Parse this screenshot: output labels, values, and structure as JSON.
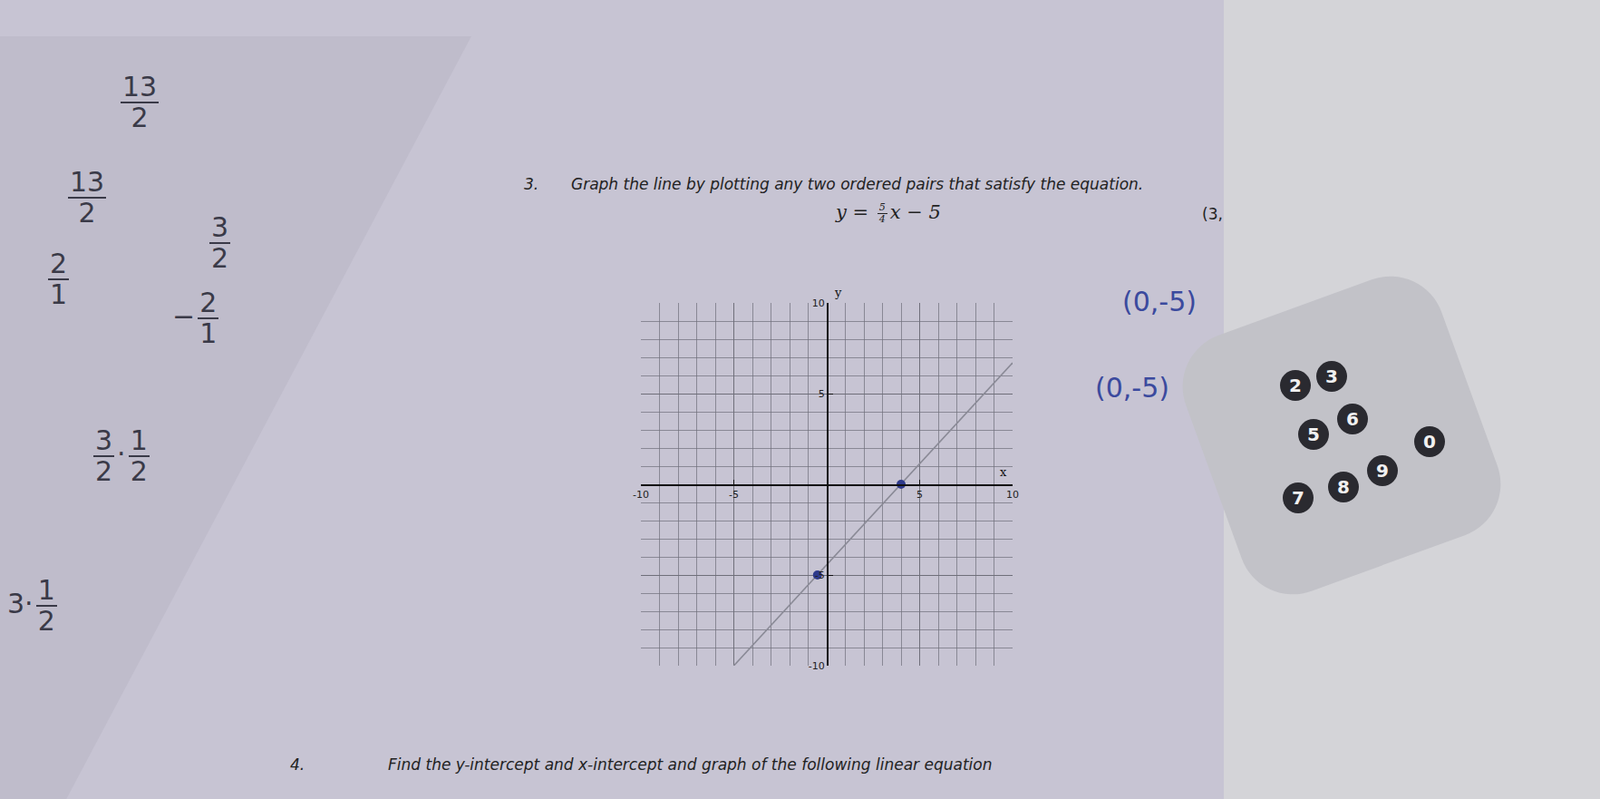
{
  "problem3": {
    "number": "3.",
    "text": "Graph the line by plotting any two ordered pairs that satisfy the equation.",
    "equation": {
      "lhs": "y =",
      "numerator": "5",
      "denominator": "4",
      "rest": "x − 5"
    },
    "margin_note": "(3,"
  },
  "handwritten_answers": [
    "(0,-5)",
    "(0,-5)"
  ],
  "side_notes": [
    [
      {
        "frac": [
          "13",
          "2"
        ]
      }
    ],
    [
      {
        "frac": [
          "13",
          "2"
        ]
      }
    ],
    [
      {
        "frac": [
          "2",
          "1"
        ]
      }
    ],
    [
      {
        "frac": [
          "3",
          "2"
        ]
      }
    ],
    [
      "−",
      {
        "frac": [
          "2",
          "1"
        ]
      }
    ],
    [
      {
        "frac": [
          "3",
          "2"
        ]
      },
      "·",
      {
        "frac": [
          "1",
          "2"
        ]
      }
    ],
    [
      "3",
      "·",
      {
        "frac": [
          "1",
          "2"
        ]
      }
    ]
  ],
  "keypad": [
    "2",
    "3",
    "5",
    "6",
    "0",
    "7",
    "8",
    "9"
  ],
  "problem4": {
    "number": "4.",
    "text": "Find the y-intercept and x-intercept and graph of the following linear equation"
  },
  "chart_data": {
    "type": "line",
    "xlabel": "x",
    "ylabel": "y",
    "xlim": [
      -10,
      10
    ],
    "ylim": [
      -10,
      10
    ],
    "xticks": [
      -10,
      -5,
      5,
      10
    ],
    "yticks": [
      -10,
      -5,
      5,
      10
    ],
    "grid": true,
    "series": [
      {
        "type": "line",
        "color": "#8a8a96",
        "line_style": "solid",
        "x": [
          -5,
          10
        ],
        "y": [
          -10,
          6.7
        ]
      },
      {
        "type": "scatter",
        "color": "#2e3a8c",
        "marker": "circle",
        "x": [
          -0.5,
          4
        ],
        "y": [
          -5,
          0
        ]
      }
    ]
  }
}
